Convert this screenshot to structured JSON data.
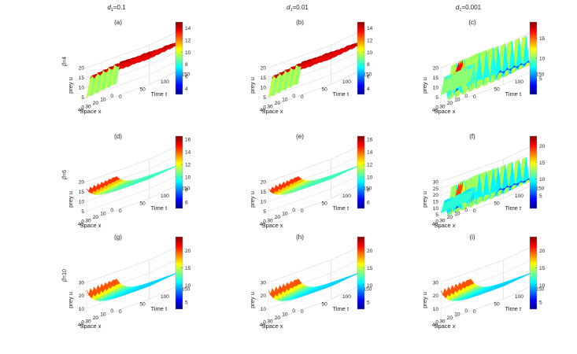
{
  "figure": {
    "columns": [
      {
        "sym": "d",
        "sub": "1",
        "val": "=0.1"
      },
      {
        "sym": "d",
        "sub": "1",
        "val": "=0.01"
      },
      {
        "sym": "d",
        "sub": "1",
        "val": "=0.001"
      }
    ],
    "rows": [
      {
        "sym": "β",
        "val": "=4"
      },
      {
        "sym": "β",
        "val": "=6"
      },
      {
        "sym": "β",
        "val": "=10"
      }
    ]
  },
  "chart_data": [
    {
      "panel": "(a)",
      "type": "surface3d",
      "surface": "plateau",
      "zlabel": "prey u",
      "xlabel": "Space x",
      "ylabel": "Time t",
      "zticks": [
        "0",
        "5",
        "10",
        "15",
        "20"
      ],
      "xticks": [
        "0",
        "10",
        "20",
        "30",
        "40"
      ],
      "yticks": [
        "0",
        "50",
        "100",
        "150"
      ],
      "colorbar_ticks": [
        "4",
        "6",
        "8",
        "10",
        "12",
        "14"
      ],
      "colorbar_range": [
        3,
        15
      ]
    },
    {
      "panel": "(b)",
      "type": "surface3d",
      "surface": "plateau",
      "zlabel": "prey u",
      "xlabel": "Space x",
      "ylabel": "Time t",
      "zticks": [
        "0",
        "5",
        "10",
        "15",
        "20"
      ],
      "xticks": [
        "0",
        "10",
        "20",
        "30",
        "40"
      ],
      "yticks": [
        "0",
        "50",
        "100",
        "150"
      ],
      "colorbar_ticks": [
        "4",
        "6",
        "8",
        "10",
        "12",
        "14"
      ],
      "colorbar_range": [
        3,
        15
      ]
    },
    {
      "panel": "(c)",
      "type": "surface3d",
      "surface": "spiky",
      "zlabel": "prey u",
      "xlabel": "Space x",
      "ylabel": "Time t",
      "zticks": [
        "0",
        "5",
        "10",
        "15",
        "20"
      ],
      "xticks": [
        "0",
        "10",
        "20",
        "30",
        "40"
      ],
      "yticks": [
        "0",
        "50",
        "100",
        "150"
      ],
      "colorbar_ticks": [
        "5",
        "10",
        "15"
      ],
      "colorbar_range": [
        1,
        19
      ]
    },
    {
      "panel": "(d)",
      "type": "surface3d",
      "surface": "decay",
      "zlabel": "prey u",
      "xlabel": "Space x",
      "ylabel": "Time t",
      "zticks": [
        "0",
        "5",
        "10",
        "15",
        "20"
      ],
      "xticks": [
        "0",
        "10",
        "20",
        "30",
        "40"
      ],
      "yticks": [
        "0",
        "50",
        "100",
        "150"
      ],
      "colorbar_ticks": [
        "6",
        "8",
        "10",
        "12",
        "14",
        "16"
      ],
      "colorbar_range": [
        5,
        16.5
      ]
    },
    {
      "panel": "(e)",
      "type": "surface3d",
      "surface": "decay",
      "zlabel": "prey u",
      "xlabel": "Space x",
      "ylabel": "Time t",
      "zticks": [
        "0",
        "5",
        "10",
        "15",
        "20"
      ],
      "xticks": [
        "0",
        "10",
        "20",
        "30",
        "40"
      ],
      "yticks": [
        "0",
        "50",
        "100",
        "150"
      ],
      "colorbar_ticks": [
        "6",
        "8",
        "10",
        "12",
        "14",
        "16"
      ],
      "colorbar_range": [
        5,
        16.5
      ]
    },
    {
      "panel": "(f)",
      "type": "surface3d",
      "surface": "spiky",
      "zlabel": "prey u",
      "xlabel": "Space x",
      "ylabel": "Time t",
      "zticks": [
        "0",
        "5",
        "10",
        "15",
        "20",
        "25",
        "30"
      ],
      "xticks": [
        "0",
        "10",
        "20",
        "30",
        "40"
      ],
      "yticks": [
        "0",
        "50",
        "100",
        "150"
      ],
      "colorbar_ticks": [
        "5",
        "10",
        "15",
        "20"
      ],
      "colorbar_range": [
        1,
        23
      ]
    },
    {
      "panel": "(g)",
      "type": "surface3d",
      "surface": "decay",
      "zlabel": "prey u",
      "xlabel": "Space x",
      "ylabel": "Time t",
      "zticks": [
        "0",
        "10",
        "20",
        "30"
      ],
      "xticks": [
        "0",
        "10",
        "20",
        "30",
        "40"
      ],
      "yticks": [
        "0",
        "50",
        "100",
        "150"
      ],
      "colorbar_ticks": [
        "5",
        "10",
        "15",
        "20"
      ],
      "colorbar_range": [
        3,
        24
      ]
    },
    {
      "panel": "(h)",
      "type": "surface3d",
      "surface": "decay",
      "zlabel": "prey u",
      "xlabel": "Space x",
      "ylabel": "Time t",
      "zticks": [
        "0",
        "10",
        "20",
        "30"
      ],
      "xticks": [
        "0",
        "10",
        "20",
        "30",
        "40"
      ],
      "yticks": [
        "0",
        "50",
        "100",
        "150"
      ],
      "colorbar_ticks": [
        "5",
        "10",
        "15",
        "20"
      ],
      "colorbar_range": [
        3,
        24
      ]
    },
    {
      "panel": "(i)",
      "type": "surface3d",
      "surface": "decay",
      "zlabel": "prey u",
      "xlabel": "Space x",
      "ylabel": "Time t",
      "zticks": [
        "0",
        "10",
        "20",
        "30"
      ],
      "xticks": [
        "0",
        "10",
        "20",
        "30",
        "40"
      ],
      "yticks": [
        "0",
        "50",
        "100",
        "150"
      ],
      "colorbar_ticks": [
        "5",
        "10",
        "15",
        "20"
      ],
      "colorbar_range": [
        3,
        24
      ]
    }
  ]
}
